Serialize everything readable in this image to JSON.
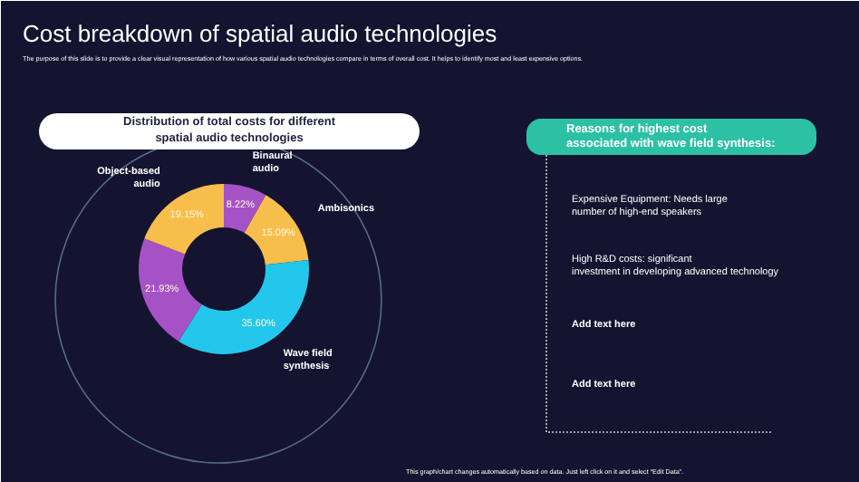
{
  "chart_data": [
    {
      "type": "other",
      "title": "Cost breakdown of spatial audio technologies",
      "subtitle": "The purpose of this slide is to provide a clear visual representation of how various spatial audio technologies compare in terms of overall cost. It helps to identify most and least expensive options.",
      "annotations": [
        "This graph/chart changes automatically based on data. Just left click on it and select “Edit Data”."
      ]
    },
    {
      "type": "donut",
      "title": "Distribution of total costs for different spatial audio technologies",
      "categories": [
        "Binaural audio",
        "Ambisonics",
        "Wave field synthesis",
        null,
        "Object-based audio"
      ],
      "values": [
        8.22,
        15.09,
        35.6,
        21.93,
        19.15
      ],
      "colors": [
        "#a552c6",
        "#f8be4c",
        "#24c7ec",
        "#a552c6",
        "#f8be4c"
      ],
      "value_labels": [
        "8.22%",
        "15.09%",
        "35.60%",
        "21.93%",
        "19.15%"
      ]
    },
    {
      "type": "other",
      "title": "Reasons for highest cost associated with wave field synthesis:",
      "annotations": [
        "Expensive Equipment: Needs large number of high-end speakers",
        "High R&D costs: significant investment in developing advanced technology",
        "Add text here",
        "Add text here"
      ]
    }
  ]
}
